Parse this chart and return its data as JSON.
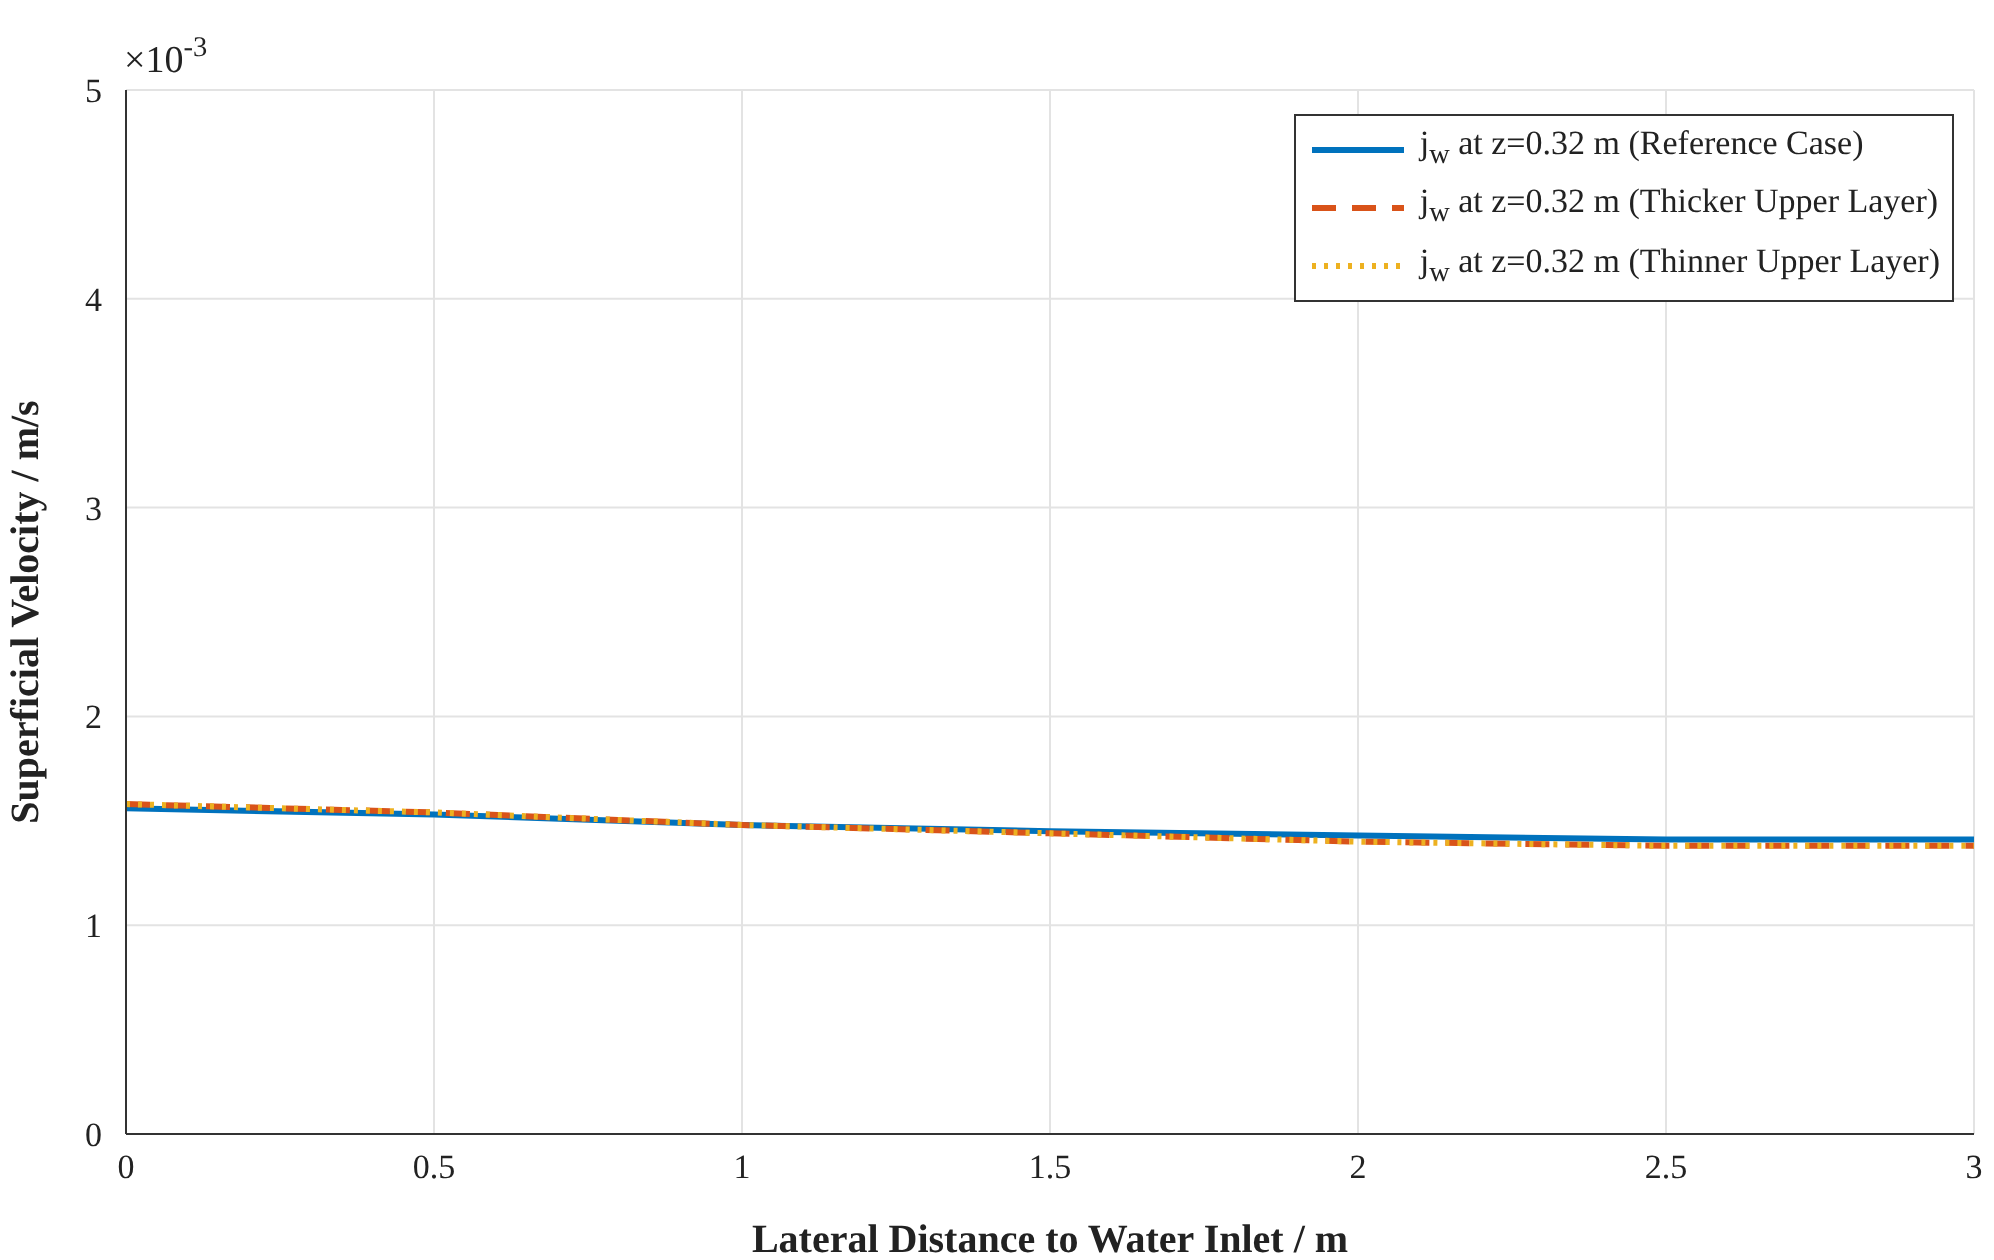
{
  "chart_data": {
    "type": "line",
    "xlabel": "Lateral Distance to Water Inlet / m",
    "ylabel": "Superficial Velocity / m/s",
    "annotations": [
      "×10$^{-3}$"
    ],
    "x": [
      0,
      0.5,
      1,
      1.5,
      2,
      2.5,
      3
    ],
    "xlim": [
      0,
      3
    ],
    "xticks": [
      0,
      0.5,
      1,
      1.5,
      2,
      2.5,
      3
    ],
    "ylim": [
      0,
      5
    ],
    "yticks": [
      0,
      1,
      2,
      3,
      4,
      5
    ],
    "grid": true,
    "legend": "top right",
    "marker": "none",
    "series": [
      {
        "name": "j$_{w}$ at z=0.32 m (Reference Case)",
        "color": "#0072bd",
        "line_style": "solid",
        "values": [
          1.56,
          1.53,
          1.48,
          1.45,
          1.43,
          1.41,
          1.41
        ]
      },
      {
        "name": "j$_{w}$ at z=0.32 m (Thicker Upper Layer)",
        "color": "#d95319",
        "line_style": "dashed",
        "values": [
          1.58,
          1.54,
          1.48,
          1.44,
          1.4,
          1.38,
          1.38
        ]
      },
      {
        "name": "j$_{w}$ at z=0.32 m (Thinner Upper Layer)",
        "color": "#edb120",
        "line_style": "dotted",
        "values": [
          1.58,
          1.54,
          1.48,
          1.44,
          1.4,
          1.38,
          1.38
        ]
      }
    ]
  }
}
